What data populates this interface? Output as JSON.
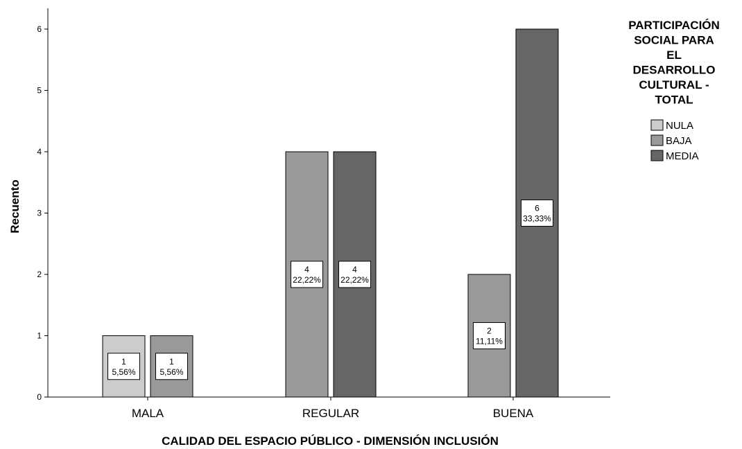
{
  "chart_data": {
    "type": "bar",
    "categories": [
      "MALA",
      "REGULAR",
      "BUENA"
    ],
    "series": [
      {
        "name": "NULA",
        "color": "#cccccc",
        "values": [
          1,
          null,
          null
        ],
        "labels": [
          [
            "1",
            "5,56%"
          ],
          null,
          null
        ]
      },
      {
        "name": "BAJA",
        "color": "#999999",
        "values": [
          1,
          4,
          2
        ],
        "labels": [
          [
            "1",
            "5,56%"
          ],
          [
            "4",
            "22,22%"
          ],
          [
            "2",
            "11,11%"
          ]
        ]
      },
      {
        "name": "MEDIA",
        "color": "#666666",
        "values": [
          null,
          4,
          6
        ],
        "labels": [
          null,
          [
            "4",
            "22,22%"
          ],
          [
            "6",
            "33,33%"
          ]
        ]
      }
    ],
    "xlabel": "CALIDAD DEL ESPACIO PÚBLICO - DIMENSIÓN INCLUSIÓN",
    "ylabel": "Recuento",
    "ylim": [
      0,
      6
    ],
    "yticks": [
      "0",
      "1",
      "2",
      "3",
      "4",
      "5",
      "6"
    ],
    "grid": false,
    "legend": {
      "title_lines": [
        "PARTICIPACIÓN",
        "SOCIAL PARA",
        "EL",
        "DESARROLLO",
        "CULTURAL -",
        "TOTAL"
      ],
      "placement": "top-right"
    }
  }
}
